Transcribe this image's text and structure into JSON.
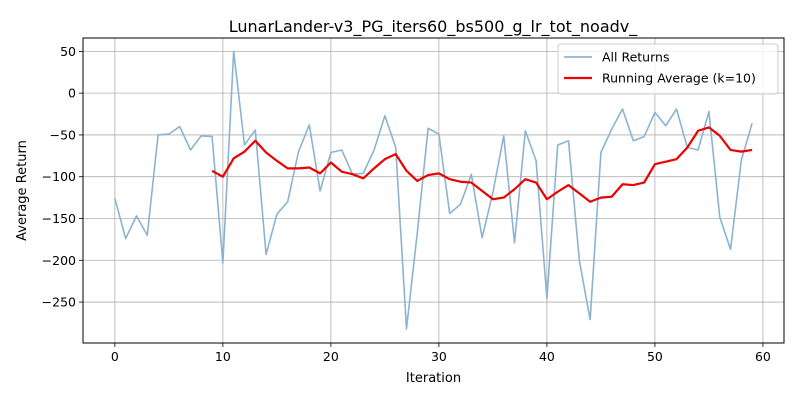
{
  "chart_data": {
    "type": "line",
    "title": "LunarLander-v3_PG_iters60_bs500_g_lr_tot_noadv_",
    "xlabel": "Iteration",
    "ylabel": "Average Return",
    "xlim": [
      -2.95,
      61.95
    ],
    "ylim": [
      -299,
      66
    ],
    "xticks": [
      0,
      10,
      20,
      30,
      40,
      50,
      60
    ],
    "yticks": [
      50,
      0,
      -50,
      -100,
      -150,
      -200,
      -250
    ],
    "grid": true,
    "legend_position": "top-right",
    "series": [
      {
        "name": "All Returns",
        "color": "#8ab4d2",
        "x": [
          0,
          1,
          2,
          3,
          4,
          5,
          6,
          7,
          8,
          9,
          10,
          11,
          12,
          13,
          14,
          15,
          16,
          17,
          18,
          19,
          20,
          21,
          22,
          23,
          24,
          25,
          26,
          27,
          28,
          29,
          30,
          31,
          32,
          33,
          34,
          35,
          36,
          37,
          38,
          39,
          40,
          41,
          42,
          43,
          44,
          45,
          46,
          47,
          48,
          49,
          50,
          51,
          52,
          53,
          54,
          55,
          56,
          57,
          58,
          59
        ],
        "values": [
          -126,
          -174,
          -147,
          -170,
          -50,
          -49,
          -40,
          -68,
          -51,
          -52,
          -203,
          50,
          -62,
          -44,
          -193,
          -145,
          -130,
          -70,
          -38,
          -117,
          -71,
          -68,
          -97,
          -96,
          -68,
          -27,
          -65,
          -282,
          -167,
          -42,
          -49,
          -144,
          -133,
          -97,
          -173,
          -119,
          -51,
          -179,
          -45,
          -81,
          -246,
          -62,
          -57,
          -200,
          -271,
          -71,
          -43,
          -19,
          -57,
          -52,
          -23,
          -39,
          -19,
          -65,
          -68,
          -22,
          -148,
          -187,
          -80,
          -36
        ]
      },
      {
        "name": "Running Average (k=10)",
        "color": "#ee0000",
        "x": [
          9,
          10,
          11,
          12,
          13,
          14,
          15,
          16,
          17,
          18,
          19,
          20,
          21,
          22,
          23,
          24,
          25,
          26,
          27,
          28,
          29,
          30,
          31,
          32,
          33,
          34,
          35,
          36,
          37,
          38,
          39,
          40,
          41,
          42,
          43,
          44,
          45,
          46,
          47,
          48,
          49,
          50,
          51,
          52,
          53,
          54,
          55,
          56,
          57,
          58,
          59
        ],
        "values": [
          -93,
          -100,
          -78,
          -70,
          -57,
          -71,
          -81,
          -90,
          -90,
          -89,
          -96,
          -83,
          -94,
          -97,
          -102,
          -90,
          -79,
          -73,
          -93,
          -105,
          -98,
          -96,
          -103,
          -106,
          -107,
          -117,
          -127,
          -125,
          -115,
          -103,
          -107,
          -127,
          -118,
          -110,
          -120,
          -130,
          -125,
          -124,
          -109,
          -110,
          -107,
          -85,
          -82,
          -79,
          -65,
          -45,
          -41,
          -51,
          -68,
          -70,
          -68
        ]
      }
    ]
  }
}
